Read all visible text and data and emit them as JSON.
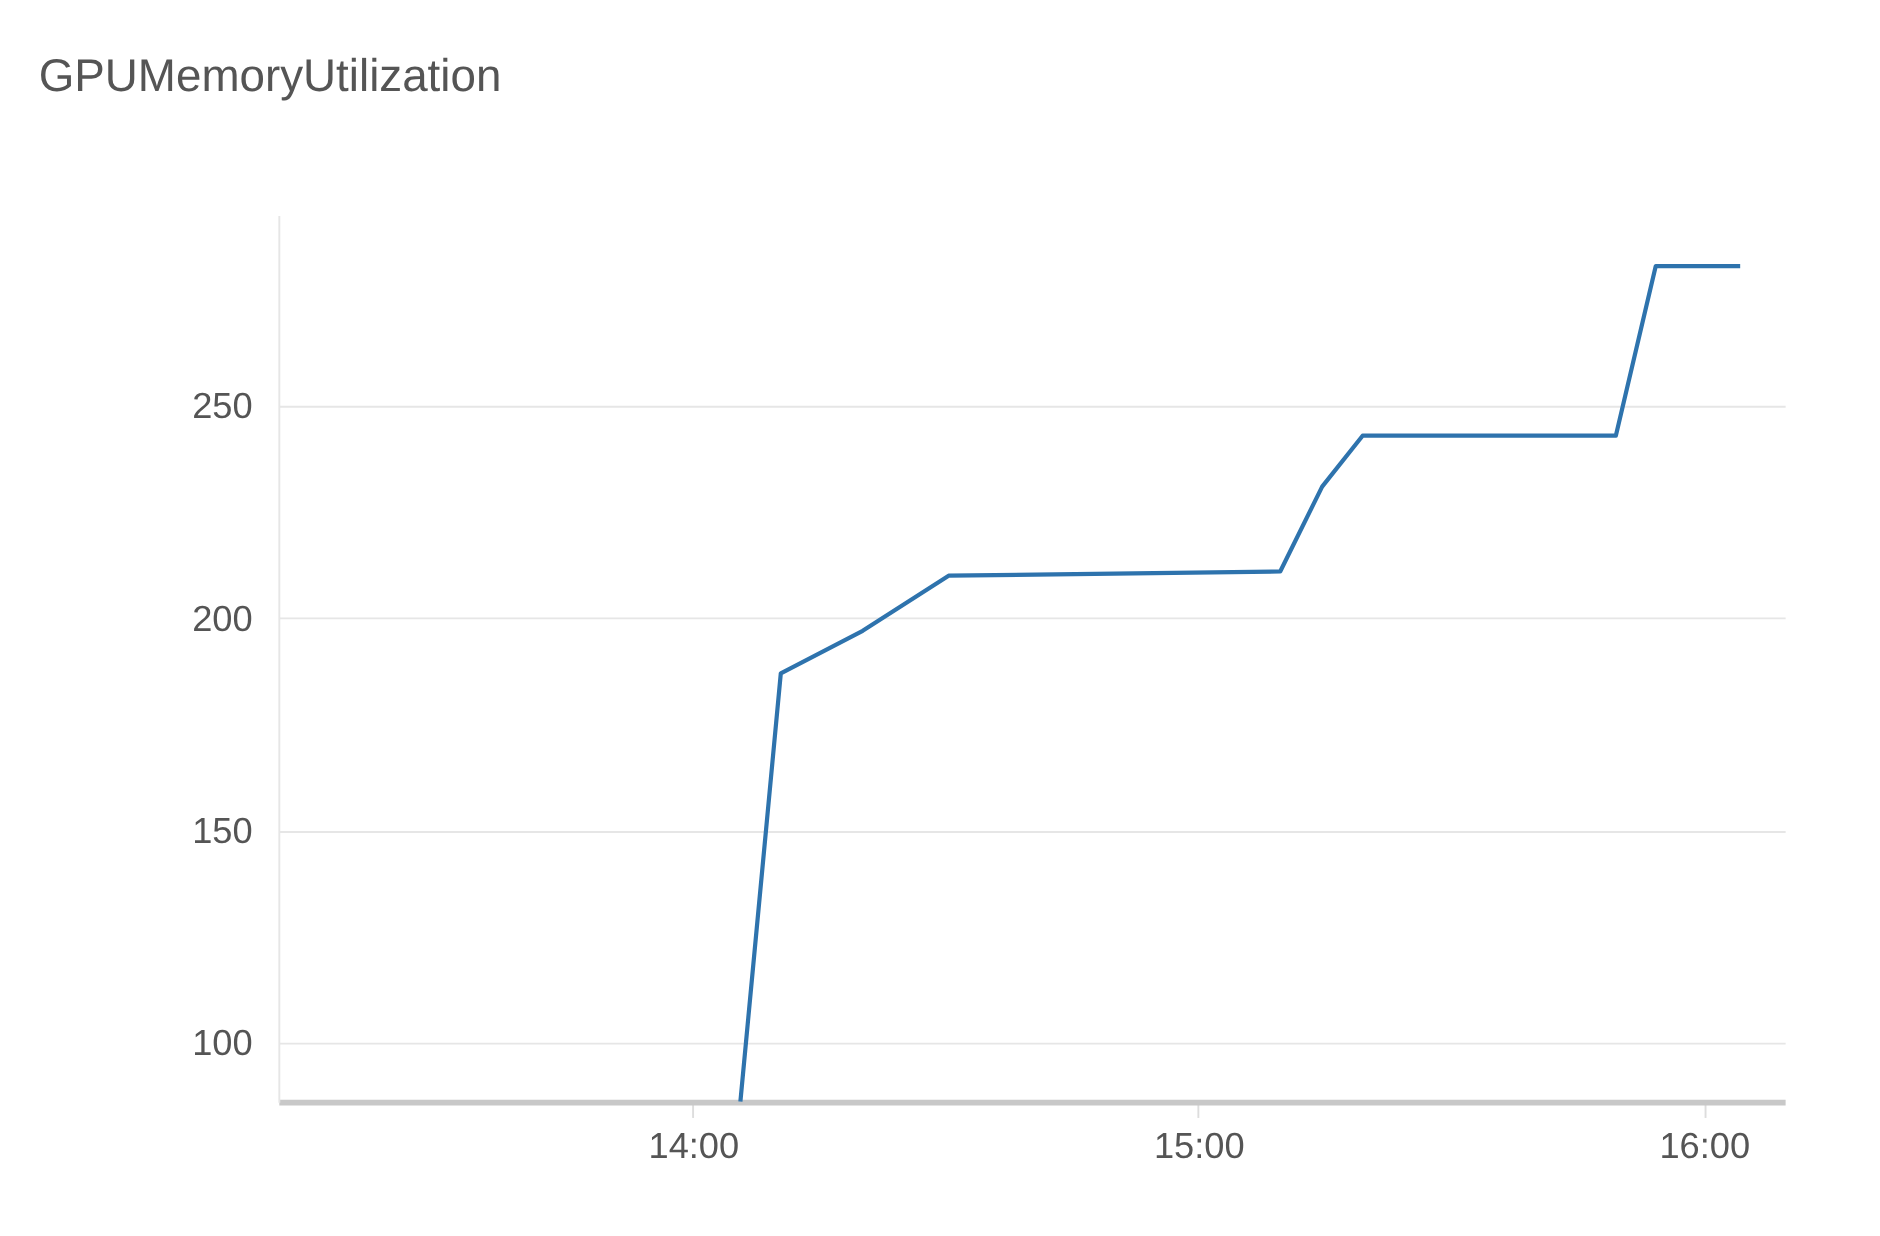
{
  "chart_data": {
    "type": "line",
    "title": "GPUMemoryUtilization",
    "x": [
      14.094,
      14.174,
      14.336,
      14.506,
      15.162,
      15.245,
      15.325,
      15.826,
      15.905,
      16.072
    ],
    "series": [
      {
        "color": "#2e73ad",
        "values": [
          86,
          187,
          197,
          210,
          211,
          231,
          243,
          243,
          283,
          283
        ]
      }
    ],
    "xlim": [
      13.18,
      16.16
    ],
    "xticks": [
      {
        "value": 14,
        "label": "14:00"
      },
      {
        "value": 15,
        "label": "15:00"
      },
      {
        "value": 16,
        "label": "16:00"
      }
    ],
    "ylim": [
      86,
      295
    ],
    "yticks": [
      100,
      150,
      200,
      250
    ],
    "grid": "y",
    "marker": "none",
    "line_style": "solid"
  }
}
